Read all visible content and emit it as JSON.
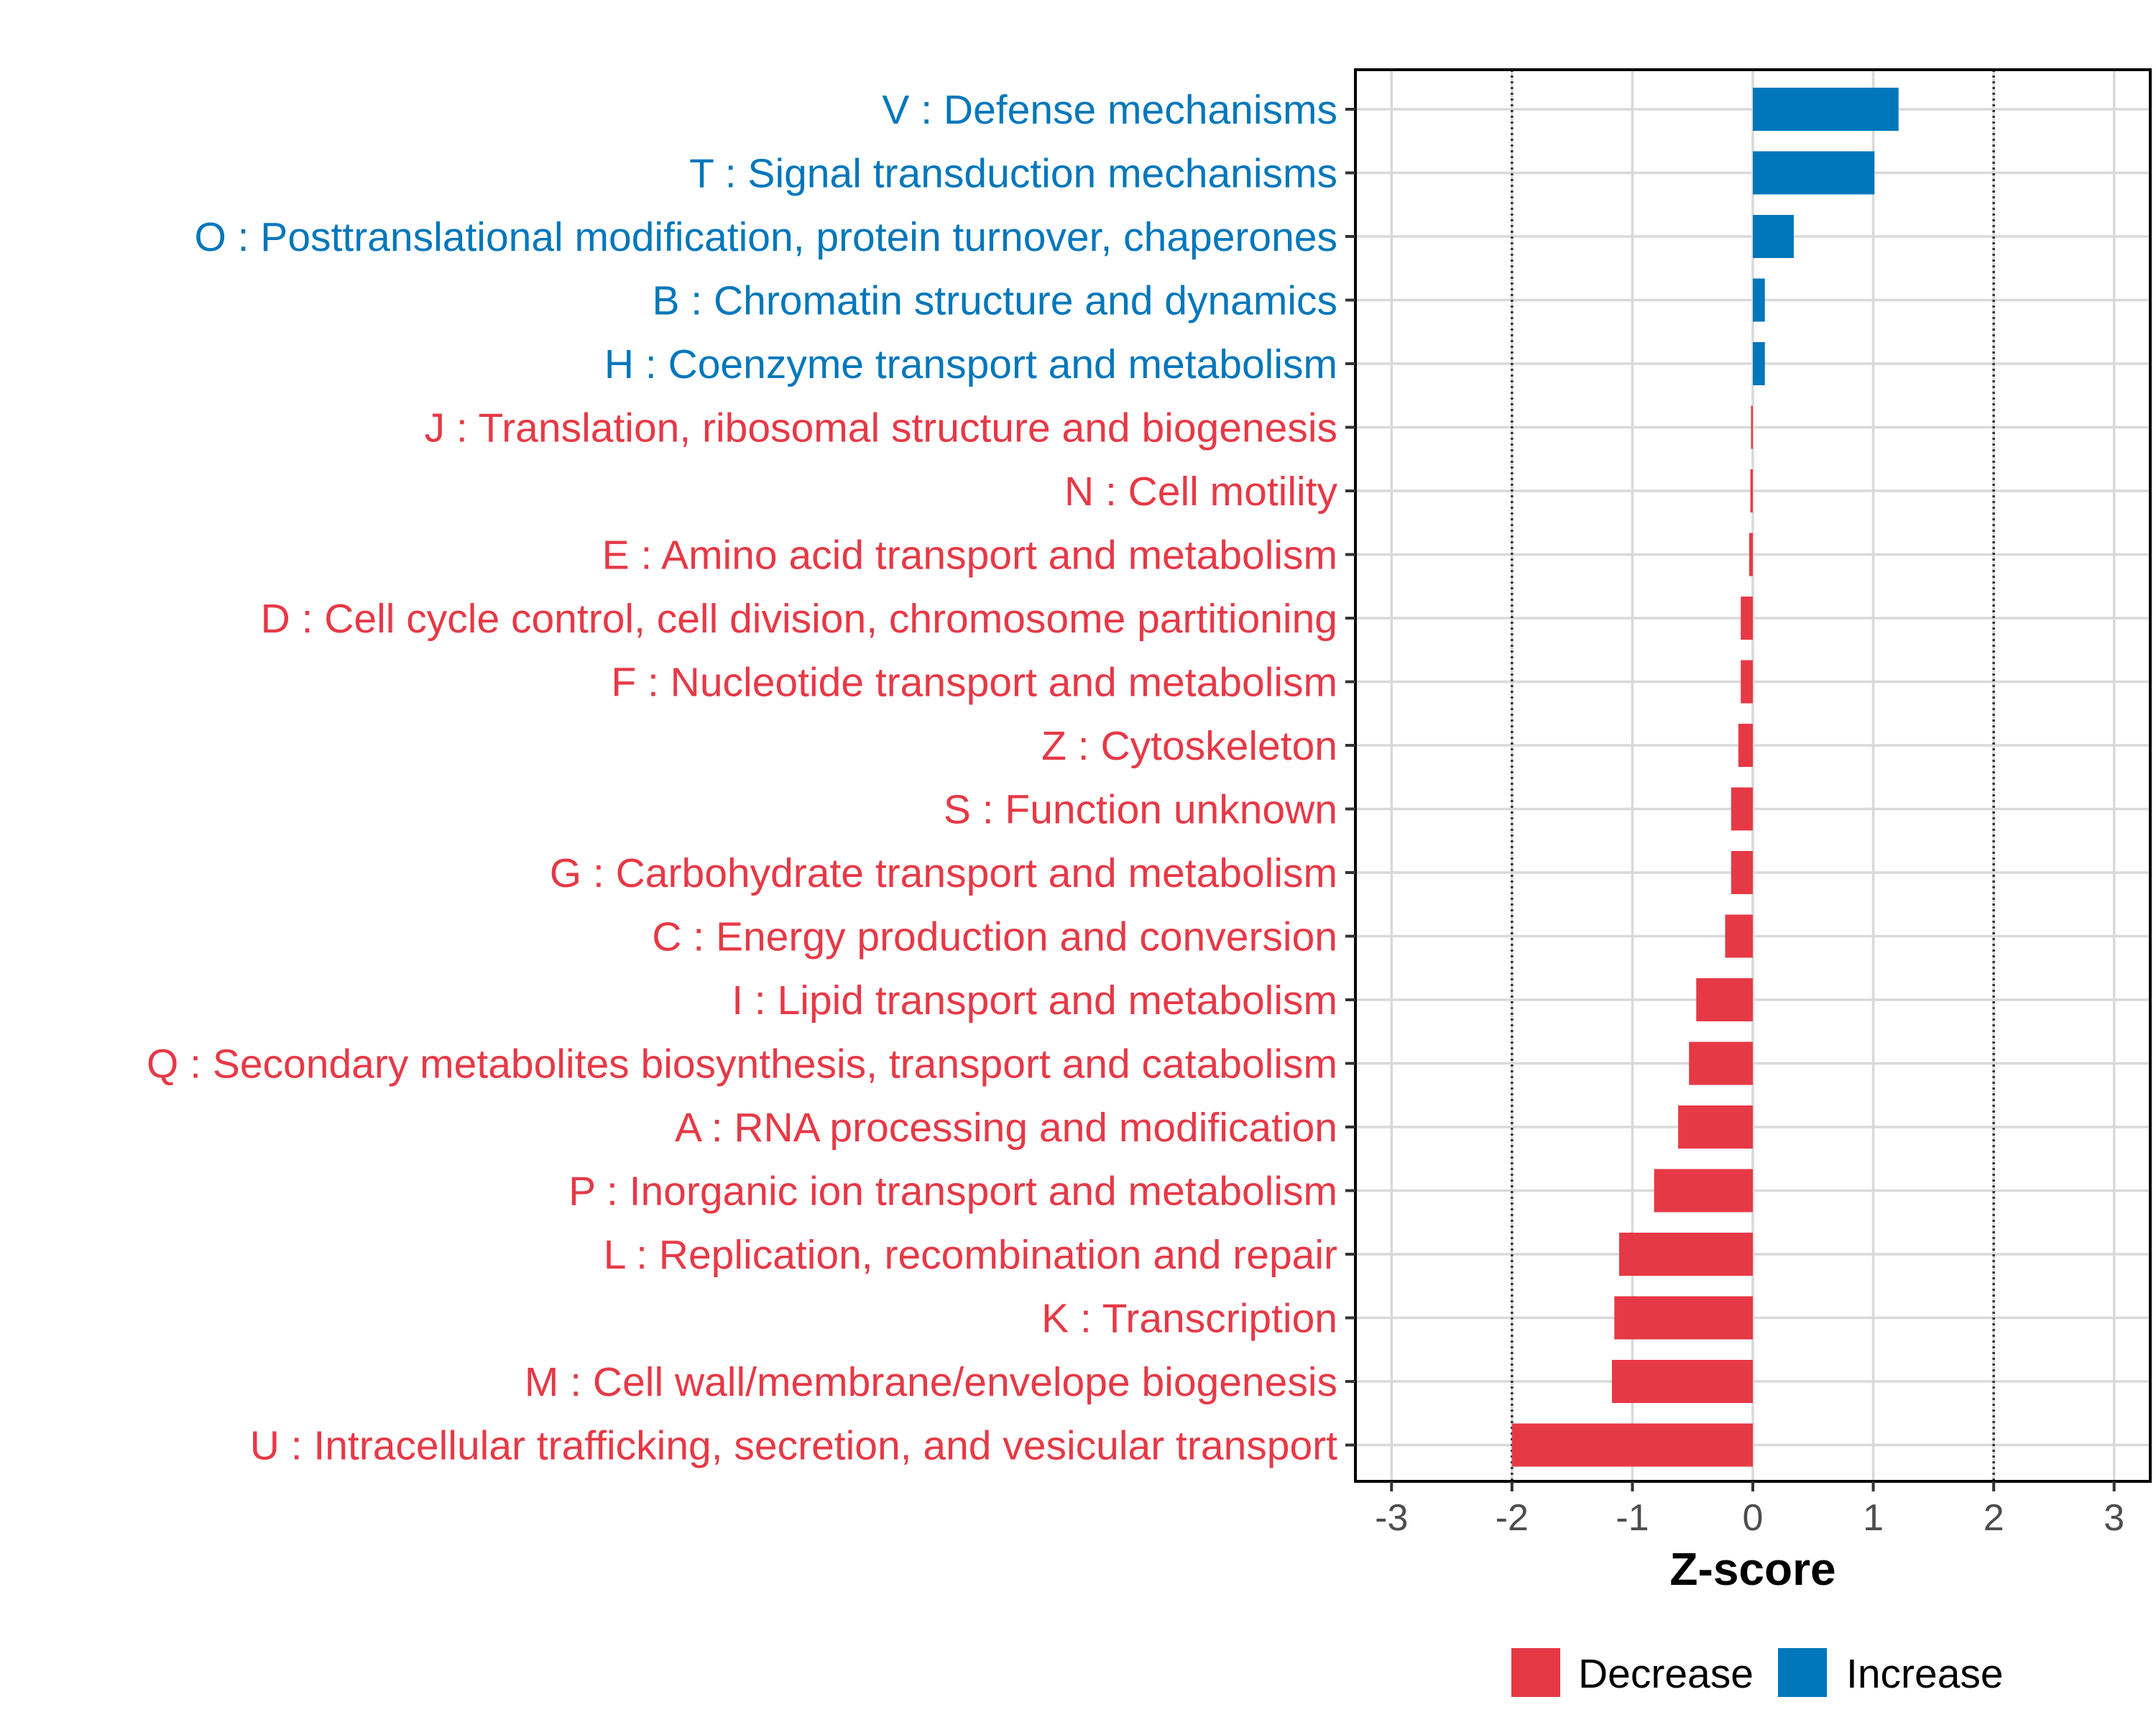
{
  "chart_data": {
    "type": "bar",
    "orientation": "horizontal",
    "title": "",
    "xlabel": "Z-score",
    "ylabel": "",
    "xlim": [
      -3.3,
      3.3
    ],
    "x_ticks": [
      -3,
      -2,
      -1,
      0,
      1,
      2,
      3
    ],
    "x_tick_labels": [
      "-3",
      "-2",
      "-1",
      "0",
      "1",
      "2",
      "3"
    ],
    "reference_lines": [
      -2,
      2
    ],
    "grid": true,
    "legend_position": "bottom",
    "categories": [
      "V : Defense mechanisms",
      "T : Signal transduction mechanisms",
      "O : Posttranslational modification, protein turnover, chaperones",
      "B : Chromatin structure and dynamics",
      "H : Coenzyme transport and metabolism",
      "J : Translation, ribosomal structure and biogenesis",
      "N : Cell motility",
      "E : Amino acid transport and metabolism",
      "D : Cell cycle control, cell division, chromosome partitioning",
      "F : Nucleotide transport and metabolism",
      "Z : Cytoskeleton",
      "S : Function unknown",
      "G : Carbohydrate transport and metabolism",
      "C : Energy production and conversion",
      "I : Lipid transport and metabolism",
      "Q : Secondary metabolites biosynthesis, transport and catabolism",
      "A : RNA processing and modification",
      "P : Inorganic ion transport and metabolism",
      "L : Replication, recombination and repair",
      "K : Transcription",
      "M : Cell wall/membrane/envelope biogenesis",
      "U : Intracellular trafficking, secretion, and vesicular transport"
    ],
    "values": [
      1.21,
      1.01,
      0.34,
      0.1,
      0.1,
      -0.01,
      -0.02,
      -0.03,
      -0.1,
      -0.1,
      -0.12,
      -0.18,
      -0.18,
      -0.23,
      -0.47,
      -0.53,
      -0.62,
      -0.82,
      -1.11,
      -1.15,
      -1.17,
      -2.0
    ],
    "groups": [
      "Increase",
      "Increase",
      "Increase",
      "Increase",
      "Increase",
      "Decrease",
      "Decrease",
      "Decrease",
      "Decrease",
      "Decrease",
      "Decrease",
      "Decrease",
      "Decrease",
      "Decrease",
      "Decrease",
      "Decrease",
      "Decrease",
      "Decrease",
      "Decrease",
      "Decrease",
      "Decrease",
      "Decrease"
    ],
    "legend": [
      {
        "name": "Decrease",
        "color": "#e63946"
      },
      {
        "name": "Increase",
        "color": "#0077bb"
      }
    ],
    "colors": {
      "Decrease": "#e63946",
      "Increase": "#0077bb"
    }
  }
}
